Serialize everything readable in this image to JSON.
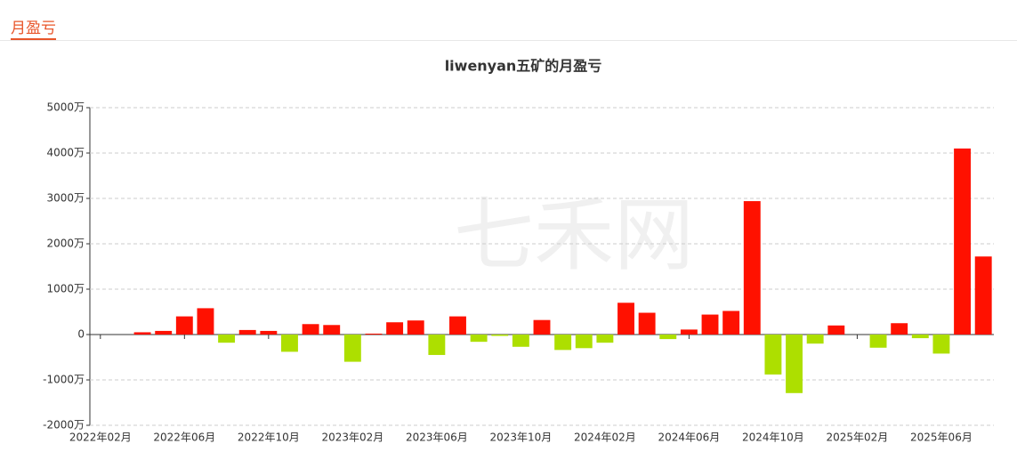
{
  "header": {
    "tab": "月盈亏"
  },
  "chart_data": {
    "type": "bar",
    "title": "liwenyan五矿的月盈亏",
    "watermark": "七禾网",
    "categories": [
      "2022年02月",
      null,
      null,
      null,
      "2022年06月",
      null,
      null,
      null,
      "2022年10月",
      null,
      null,
      null,
      "2023年02月",
      null,
      null,
      null,
      "2023年06月",
      null,
      null,
      null,
      "2023年10月",
      null,
      null,
      null,
      "2024年02月",
      null,
      null,
      null,
      "2024年06月",
      null,
      null,
      null,
      "2024年10月",
      null,
      null,
      null,
      "2025年02月",
      null,
      null,
      null,
      "2025年06月",
      null,
      null
    ],
    "values": [
      0,
      0,
      50,
      80,
      400,
      580,
      -180,
      100,
      80,
      -380,
      230,
      210,
      -600,
      20,
      270,
      310,
      -450,
      400,
      -160,
      -30,
      -270,
      320,
      -340,
      -300,
      -180,
      700,
      480,
      -100,
      110,
      440,
      520,
      2940,
      -880,
      -1290,
      -200,
      200,
      0,
      -290,
      250,
      -80,
      -420,
      4100,
      1720
    ],
    "positive_color": "#ff1100",
    "negative_color": "#addf00",
    "ylim": [
      -2000,
      5000
    ],
    "yticks": [
      {
        "value": -2000,
        "label": "-2000万"
      },
      {
        "value": -1000,
        "label": "-1000万"
      },
      {
        "value": 0,
        "label": "0"
      },
      {
        "value": 1000,
        "label": "1000万"
      },
      {
        "value": 2000,
        "label": "2000万"
      },
      {
        "value": 3000,
        "label": "3000万"
      },
      {
        "value": 4000,
        "label": "4000万"
      },
      {
        "value": 5000,
        "label": "5000万"
      }
    ],
    "grid": true
  }
}
